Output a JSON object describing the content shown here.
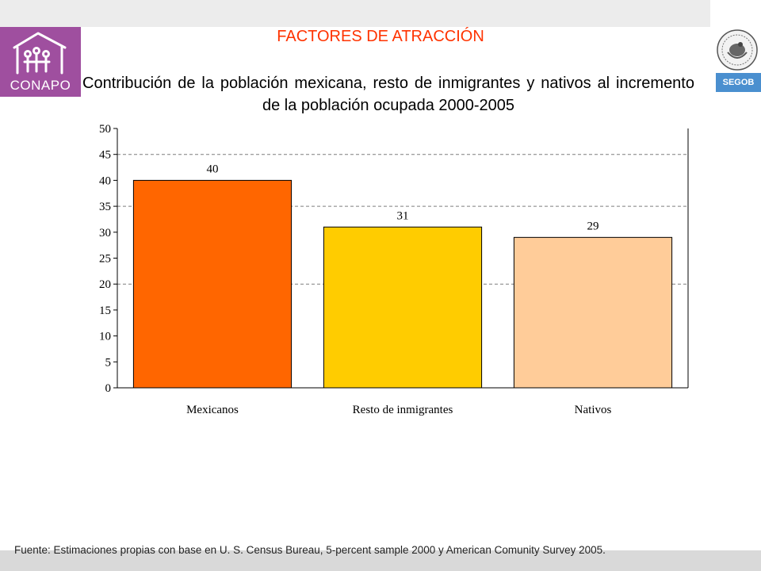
{
  "header": {
    "heading": "FACTORES DE ATRACCIÓN",
    "logo_left_text": "CONAPO",
    "logo_right_text": "SEGOB"
  },
  "chart_data": {
    "type": "bar",
    "title": "Contribución de la población mexicana, resto de inmigrantes y nativos al incremento de la población ocupada 2000-2005",
    "categories": [
      "Mexicanos",
      "Resto de inmigrantes",
      "Nativos"
    ],
    "values": [
      40,
      31,
      29
    ],
    "data_labels": [
      "40",
      "31",
      "29"
    ],
    "bar_colors": [
      "#ff6600",
      "#ffcc00",
      "#ffcc99"
    ],
    "xlabel": "",
    "ylabel": "",
    "ylim": [
      0,
      50
    ],
    "yticks": [
      0,
      5,
      10,
      15,
      20,
      25,
      30,
      35,
      40,
      45,
      50
    ],
    "dashed_gridlines": [
      20,
      35,
      45
    ],
    "legend": "none"
  },
  "footer": {
    "source": "Fuente: Estimaciones propias con base en U. S. Census Bureau, 5-percent sample 2000 y American Comunity Survey 2005."
  }
}
